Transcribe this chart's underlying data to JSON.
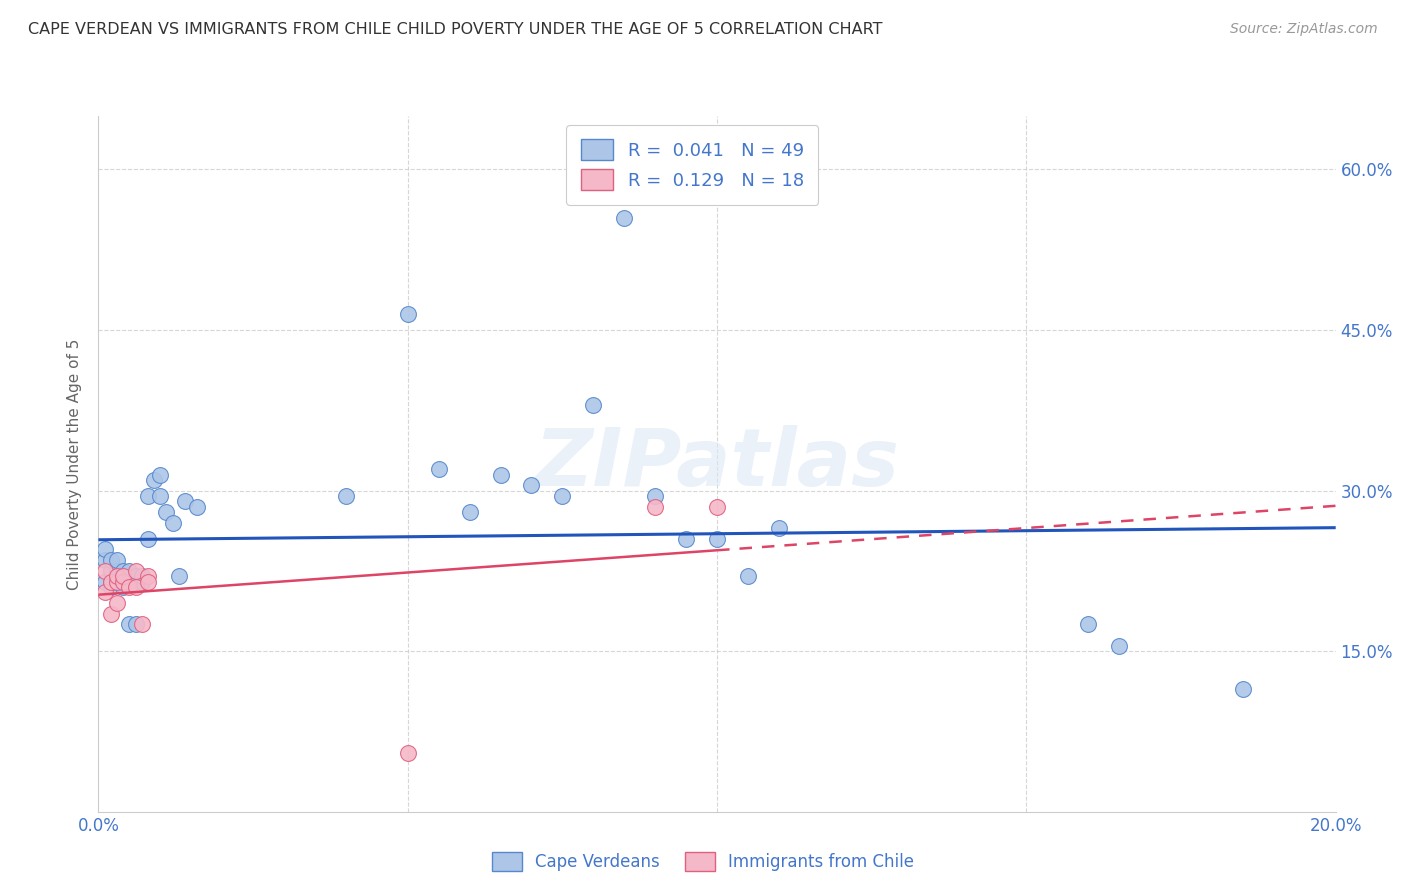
{
  "title": "CAPE VERDEAN VS IMMIGRANTS FROM CHILE CHILD POVERTY UNDER THE AGE OF 5 CORRELATION CHART",
  "source": "Source: ZipAtlas.com",
  "ylabel": "Child Poverty Under the Age of 5",
  "xlim": [
    0.0,
    0.2
  ],
  "ylim": [
    0.0,
    0.65
  ],
  "yticks": [
    0.15,
    0.3,
    0.45,
    0.6
  ],
  "ytick_labels": [
    "15.0%",
    "30.0%",
    "45.0%",
    "60.0%"
  ],
  "xticks": [
    0.0,
    0.05,
    0.1,
    0.15,
    0.2
  ],
  "xtick_labels": [
    "0.0%",
    "",
    "",
    "",
    "20.0%"
  ],
  "blue_R": 0.041,
  "blue_N": 49,
  "pink_R": 0.129,
  "pink_N": 18,
  "blue_color": "#adc6e8",
  "pink_color": "#f5b8c8",
  "blue_edge_color": "#5588cc",
  "pink_edge_color": "#e06080",
  "blue_line_color": "#2255bb",
  "pink_line_color": "#dd4466",
  "legend_blue_label": "Cape Verdeans",
  "legend_pink_label": "Immigrants from Chile",
  "blue_x": [
    0.001,
    0.001,
    0.001,
    0.002,
    0.002,
    0.002,
    0.002,
    0.003,
    0.003,
    0.003,
    0.003,
    0.004,
    0.004,
    0.004,
    0.004,
    0.005,
    0.005,
    0.005,
    0.006,
    0.006,
    0.007,
    0.007,
    0.008,
    0.008,
    0.009,
    0.01,
    0.01,
    0.011,
    0.012,
    0.013,
    0.014,
    0.016,
    0.04,
    0.05,
    0.055,
    0.06,
    0.065,
    0.07,
    0.075,
    0.08,
    0.085,
    0.09,
    0.095,
    0.1,
    0.105,
    0.11,
    0.16,
    0.165,
    0.185
  ],
  "blue_y": [
    0.235,
    0.245,
    0.215,
    0.225,
    0.21,
    0.235,
    0.215,
    0.225,
    0.215,
    0.235,
    0.22,
    0.215,
    0.225,
    0.22,
    0.21,
    0.175,
    0.215,
    0.225,
    0.175,
    0.22,
    0.215,
    0.22,
    0.255,
    0.295,
    0.31,
    0.295,
    0.315,
    0.28,
    0.27,
    0.22,
    0.29,
    0.285,
    0.295,
    0.465,
    0.32,
    0.28,
    0.315,
    0.305,
    0.295,
    0.38,
    0.555,
    0.295,
    0.255,
    0.255,
    0.22,
    0.265,
    0.175,
    0.155,
    0.115
  ],
  "pink_x": [
    0.001,
    0.001,
    0.002,
    0.002,
    0.003,
    0.003,
    0.003,
    0.004,
    0.004,
    0.005,
    0.006,
    0.006,
    0.007,
    0.008,
    0.008,
    0.05,
    0.09,
    0.1
  ],
  "pink_y": [
    0.205,
    0.225,
    0.185,
    0.215,
    0.195,
    0.215,
    0.22,
    0.215,
    0.22,
    0.21,
    0.21,
    0.225,
    0.175,
    0.22,
    0.215,
    0.055,
    0.285,
    0.285
  ],
  "background_color": "#ffffff",
  "grid_color": "#cccccc",
  "title_color": "#333333",
  "axis_label_color": "#666666",
  "tick_color": "#4477cc",
  "watermark_color": "#dde8f5",
  "watermark_alpha": 0.6
}
